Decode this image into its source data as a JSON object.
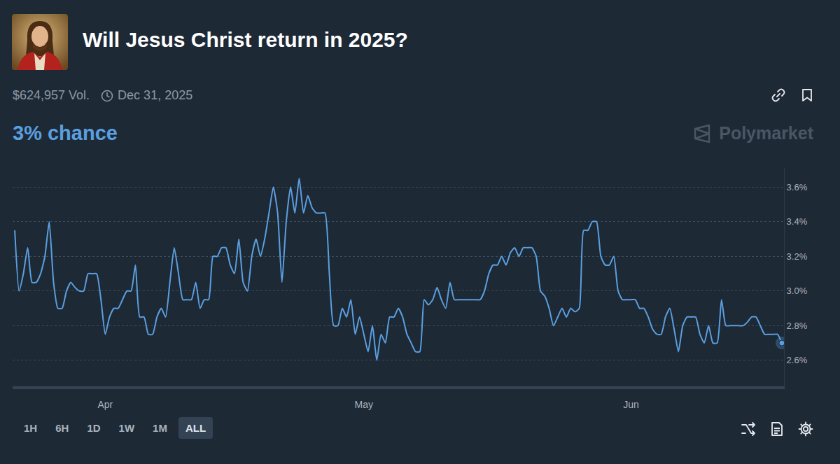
{
  "page": {
    "volume": "$624,957 Vol.",
    "end_date": "Dec 31, 2025",
    "chance": "3% chance",
    "brand": "Polymarket",
    "range_buttons": [
      "1H",
      "6H",
      "1D",
      "1W",
      "1M",
      "ALL"
    ],
    "active_button": "ALL"
  },
  "chart_data": {
    "type": "line",
    "title": "Will Jesus Christ return in 2025?",
    "categories": [
      null,
      null,
      null,
      null,
      null,
      null,
      null,
      null,
      null,
      null,
      null,
      null,
      null,
      null,
      null,
      null,
      null,
      null,
      null,
      null,
      null,
      "Apr",
      null,
      null,
      null,
      null,
      null,
      null,
      null,
      null,
      null,
      null,
      null,
      null,
      null,
      null,
      null,
      null,
      null,
      null,
      null,
      null,
      null,
      null,
      null,
      null,
      null,
      null,
      null,
      null,
      null,
      null,
      null,
      null,
      null,
      null,
      null,
      null,
      null,
      null,
      null,
      null,
      null,
      null,
      null,
      null,
      null,
      null,
      null,
      null,
      null,
      null,
      null,
      null,
      null,
      null,
      null,
      null,
      null,
      null,
      null,
      "May",
      null,
      null,
      null,
      null,
      null,
      null,
      null,
      null,
      null,
      null,
      null,
      null,
      null,
      null,
      null,
      null,
      null,
      null,
      null,
      null,
      null,
      null,
      null,
      null,
      null,
      null,
      null,
      null,
      null,
      null,
      null,
      null,
      null,
      null,
      null,
      null,
      null,
      null,
      null,
      null,
      null,
      null,
      null,
      null,
      null,
      null,
      null,
      null,
      null,
      null,
      null,
      null,
      null,
      null,
      null,
      null,
      null,
      null,
      null,
      null,
      null,
      "Jun",
      null,
      null,
      null,
      null,
      null,
      null,
      null,
      null,
      null,
      null,
      null,
      null,
      null,
      null,
      null,
      null,
      null,
      null,
      null,
      null,
      null,
      null,
      null,
      null,
      null,
      null,
      null,
      null,
      null,
      null,
      null,
      null,
      null,
      null,
      null
    ],
    "values": [
      3.35,
      3.0,
      3.1,
      3.25,
      3.05,
      3.05,
      3.1,
      3.2,
      3.4,
      3.05,
      2.9,
      2.9,
      3.0,
      3.05,
      3.02,
      3.0,
      3.0,
      3.1,
      3.1,
      3.1,
      2.95,
      2.75,
      2.85,
      2.9,
      2.9,
      2.95,
      3.0,
      3.0,
      3.15,
      2.85,
      2.85,
      2.75,
      2.75,
      2.85,
      2.9,
      2.85,
      3.05,
      3.25,
      3.1,
      2.95,
      2.95,
      2.95,
      3.05,
      2.9,
      2.95,
      2.95,
      3.2,
      3.2,
      3.25,
      3.25,
      3.15,
      3.1,
      3.3,
      3.05,
      3.0,
      3.2,
      3.3,
      3.2,
      3.3,
      3.45,
      3.6,
      3.45,
      3.05,
      3.4,
      3.6,
      3.45,
      3.65,
      3.45,
      3.55,
      3.48,
      3.45,
      3.45,
      3.45,
      3.1,
      2.8,
      2.8,
      2.9,
      2.85,
      2.95,
      2.75,
      2.85,
      2.75,
      2.65,
      2.8,
      2.6,
      2.75,
      2.7,
      2.85,
      2.85,
      2.9,
      2.85,
      2.75,
      2.7,
      2.65,
      2.65,
      2.95,
      2.92,
      2.95,
      3.02,
      2.95,
      2.9,
      3.05,
      2.95,
      2.95,
      2.95,
      2.95,
      2.95,
      2.95,
      2.95,
      3.0,
      3.1,
      3.15,
      3.15,
      3.2,
      3.15,
      3.22,
      3.25,
      3.2,
      3.25,
      3.25,
      3.25,
      3.2,
      3.0,
      2.97,
      2.9,
      2.8,
      2.85,
      2.9,
      2.85,
      2.9,
      2.88,
      2.9,
      3.35,
      3.35,
      3.4,
      3.4,
      3.2,
      3.15,
      3.15,
      3.2,
      3.0,
      2.95,
      2.95,
      2.95,
      2.95,
      2.9,
      2.9,
      2.85,
      2.78,
      2.75,
      2.75,
      2.85,
      2.9,
      2.78,
      2.65,
      2.8,
      2.85,
      2.85,
      2.85,
      2.75,
      2.7,
      2.8,
      2.7,
      2.7,
      2.95,
      2.8,
      2.8,
      2.8,
      2.8,
      2.8,
      2.82,
      2.85,
      2.85,
      2.8,
      2.75,
      2.75,
      2.75,
      2.75,
      2.7
    ],
    "color": "#5aa0e0",
    "ylim": [
      2.45,
      3.71
    ],
    "yticks": [
      {
        "value": 2.6,
        "label": "2.6%"
      },
      {
        "value": 2.8,
        "label": "2.8%"
      },
      {
        "value": 3.0,
        "label": "3.0%"
      },
      {
        "value": 3.2,
        "label": "3.2%"
      },
      {
        "value": 3.4,
        "label": "3.4%"
      },
      {
        "value": 3.6,
        "label": "3.6%"
      }
    ],
    "grid": true
  }
}
